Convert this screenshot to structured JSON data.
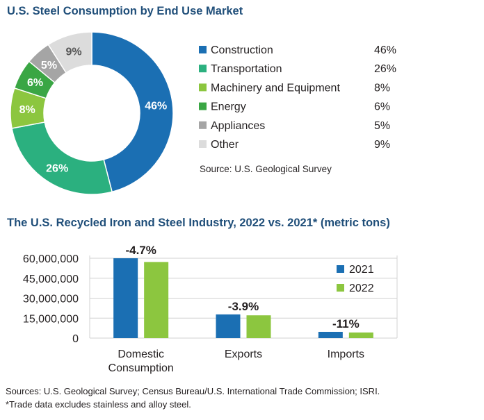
{
  "chart_data": [
    {
      "type": "pie",
      "donut": true,
      "title": "U.S. Steel Consumption by End Use Market",
      "source": "Source: U.S. Geological Survey",
      "legend_placement": "right",
      "categories": [
        "Construction",
        "Transportation",
        "Machinery and Equipment",
        "Energy",
        "Appliances",
        "Other"
      ],
      "values": [
        46,
        26,
        8,
        6,
        5,
        9
      ],
      "labels": [
        "46%",
        "26%",
        "8%",
        "6%",
        "5%",
        "9%"
      ],
      "colors": [
        "#1b6fb3",
        "#2bb07f",
        "#8cc63f",
        "#3aa644",
        "#a5a5a5",
        "#dcdcdc"
      ],
      "label_colors": [
        "#ffffff",
        "#ffffff",
        "#ffffff",
        "#ffffff",
        "#ffffff",
        "#555555"
      ]
    },
    {
      "type": "bar",
      "title": "The U.S. Recycled Iron and Steel Industry, 2022 vs. 2021* (metric tons)",
      "categories": [
        "Domestic Consumption",
        "Exports",
        "Imports"
      ],
      "category_lines": [
        [
          "Domestic",
          "Consumption"
        ],
        [
          "Exports"
        ],
        [
          "Imports"
        ]
      ],
      "series": [
        {
          "name": "2021",
          "color": "#1b6fb3",
          "values": [
            60000000,
            17800000,
            4700000
          ]
        },
        {
          "name": "2022",
          "color": "#8cc63f",
          "values": [
            57200000,
            17100000,
            4200000
          ]
        }
      ],
      "annotations": [
        "-4.7%",
        "-3.9%",
        "-11%"
      ],
      "yticks": [
        0,
        15000000,
        30000000,
        45000000,
        60000000
      ],
      "ytick_labels": [
        "0",
        "15,000,000",
        "30,000,000",
        "45,000,000",
        "60,000,000"
      ],
      "ylim": [
        0,
        60000000
      ],
      "grid": true,
      "legend_placement": "top-right"
    }
  ],
  "footer": {
    "sources": "Sources: U.S. Geological Survey; Census Bureau/U.S. International Trade Commission; ISRI.",
    "note": "*Trade data excludes stainless and alloy steel."
  }
}
